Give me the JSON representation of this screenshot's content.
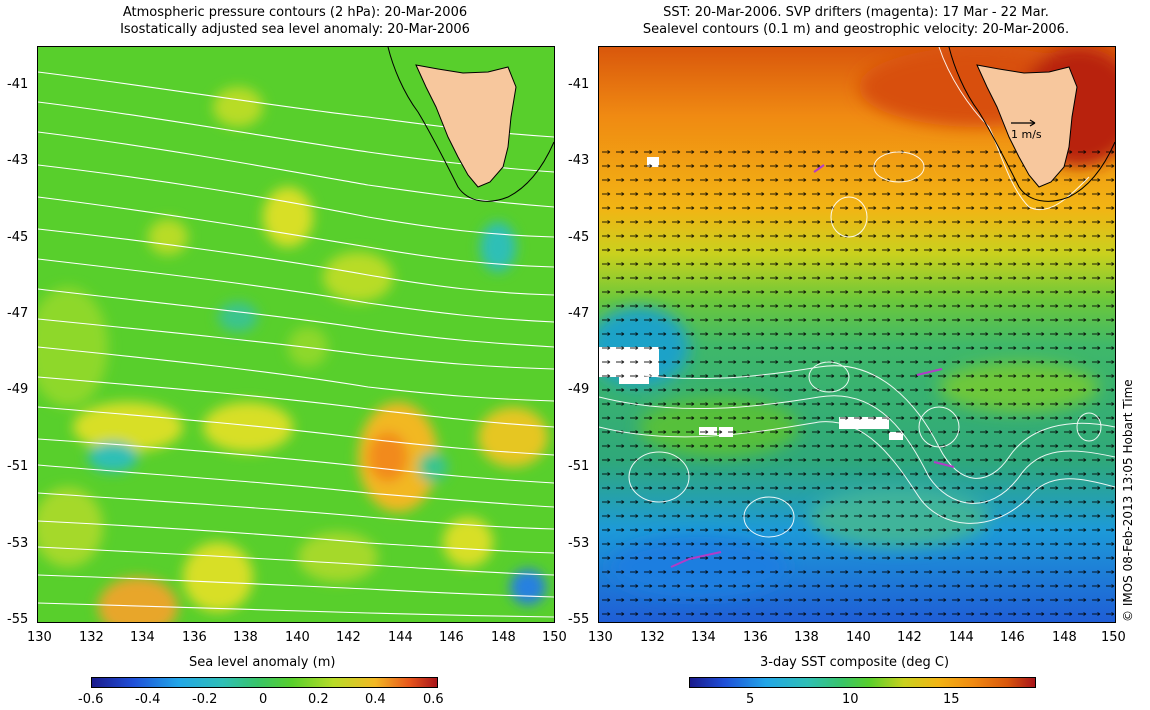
{
  "left_panel": {
    "title_line1": "Atmospheric pressure contours (2 hPa): 20-Mar-2006",
    "title_line2": "Isostatically adjusted sea level anomaly: 20-Mar-2006",
    "lat_labels": [
      "-41",
      "-43",
      "-45",
      "-47",
      "-49",
      "-51",
      "-53",
      "-55"
    ],
    "lon_labels": [
      "130",
      "132",
      "134",
      "136",
      "138",
      "140",
      "142",
      "144",
      "146",
      "148",
      "150"
    ],
    "colorbar_title": "Sea level anomaly (m)",
    "colorbar_ticks": [
      "-0.6",
      "-0.4",
      "-0.2",
      "0",
      "0.2",
      "0.4",
      "0.6"
    ],
    "colors": {
      "land": "#f7c79d",
      "contour": "#ffffff",
      "coast": "#000000"
    }
  },
  "right_panel": {
    "title_line1": "SST: 20-Mar-2006. SVP drifters (magenta): 17 Mar - 22 Mar.",
    "title_line2": "Sealevel contours (0.1 m) and geostrophic velocity: 20-Mar-2006.",
    "lat_labels": [
      "-41",
      "-43",
      "-45",
      "-47",
      "-49",
      "-51",
      "-53",
      "-55"
    ],
    "lon_labels": [
      "130",
      "132",
      "134",
      "136",
      "138",
      "140",
      "142",
      "144",
      "146",
      "148",
      "150"
    ],
    "velocity_scale_label": "1 m/s",
    "colorbar_title": "3-day SST composite (deg C)",
    "colorbar_ticks": [
      "5",
      "10",
      "15"
    ],
    "colors": {
      "land": "#f7c79d",
      "drifter": "#b23cc8",
      "arrow": "#000000"
    }
  },
  "credit": "© IMOS 08-Feb-2013 13:05 Hobart Time"
}
